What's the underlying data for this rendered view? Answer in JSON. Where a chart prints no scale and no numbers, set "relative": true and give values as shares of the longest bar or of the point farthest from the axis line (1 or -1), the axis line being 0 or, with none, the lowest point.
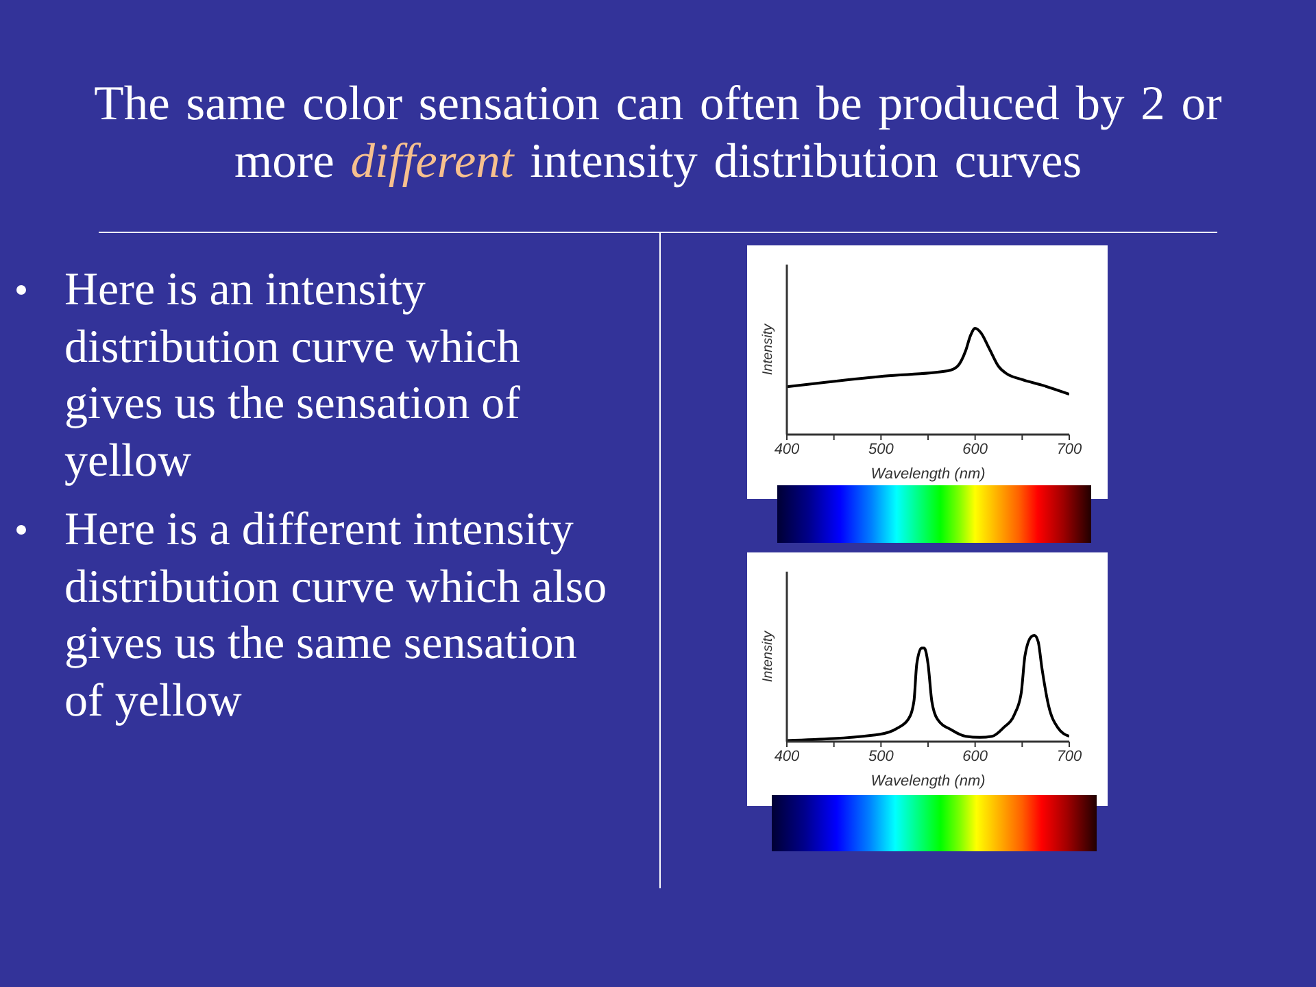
{
  "chart_data": [
    {
      "type": "other",
      "title": "The same color sensation can often be produced by 2 or more different intensity distribution curves",
      "annotations": [
        "Here is an intensity distribution curve which gives us the sensation of yellow",
        "Here is a different intensity distribution curve which also gives us the same sensation of yellow"
      ]
    },
    {
      "type": "line",
      "xlabel": "Wavelength (nm)",
      "ylabel": "Intensity",
      "relative": true,
      "xlim": [
        400,
        700
      ],
      "xticks": [
        400,
        {
          "value": 450,
          "label": null
        },
        500,
        {
          "value": 550,
          "label": null
        },
        600,
        {
          "value": 650,
          "label": null
        },
        700
      ],
      "marker": "none",
      "color": "#000000",
      "x": [
        400,
        503,
        571,
        581,
        590,
        595,
        600,
        606,
        615,
        625,
        634,
        649,
        673,
        700
      ],
      "values": [
        0.45,
        0.55,
        0.6,
        0.64,
        0.79,
        0.93,
        1,
        0.96,
        0.81,
        0.64,
        0.57,
        0.52,
        0.46,
        0.38
      ]
    },
    {
      "type": "line",
      "xlabel": "Wavelength (nm)",
      "ylabel": "Intensity",
      "relative": true,
      "xlim": [
        400,
        700
      ],
      "xticks": [
        400,
        {
          "value": 450,
          "label": null
        },
        500,
        {
          "value": 550,
          "label": null
        },
        600,
        {
          "value": 650,
          "label": null
        },
        700
      ],
      "marker": "none",
      "color": "#000000",
      "x": [
        400,
        499,
        516,
        529,
        535,
        538,
        543,
        546,
        550,
        554,
        560,
        575,
        590,
        605,
        618,
        630,
        642,
        649,
        653,
        660,
        663,
        667,
        671,
        678,
        688,
        700
      ],
      "values": [
        0.01,
        0.07,
        0.12,
        0.21,
        0.38,
        0.73,
        0.88,
        0.88,
        0.73,
        0.38,
        0.21,
        0.11,
        0.05,
        0.04,
        0.05,
        0.13,
        0.26,
        0.46,
        0.81,
        0.99,
        1,
        0.94,
        0.69,
        0.34,
        0.13,
        0.05
      ]
    }
  ]
}
